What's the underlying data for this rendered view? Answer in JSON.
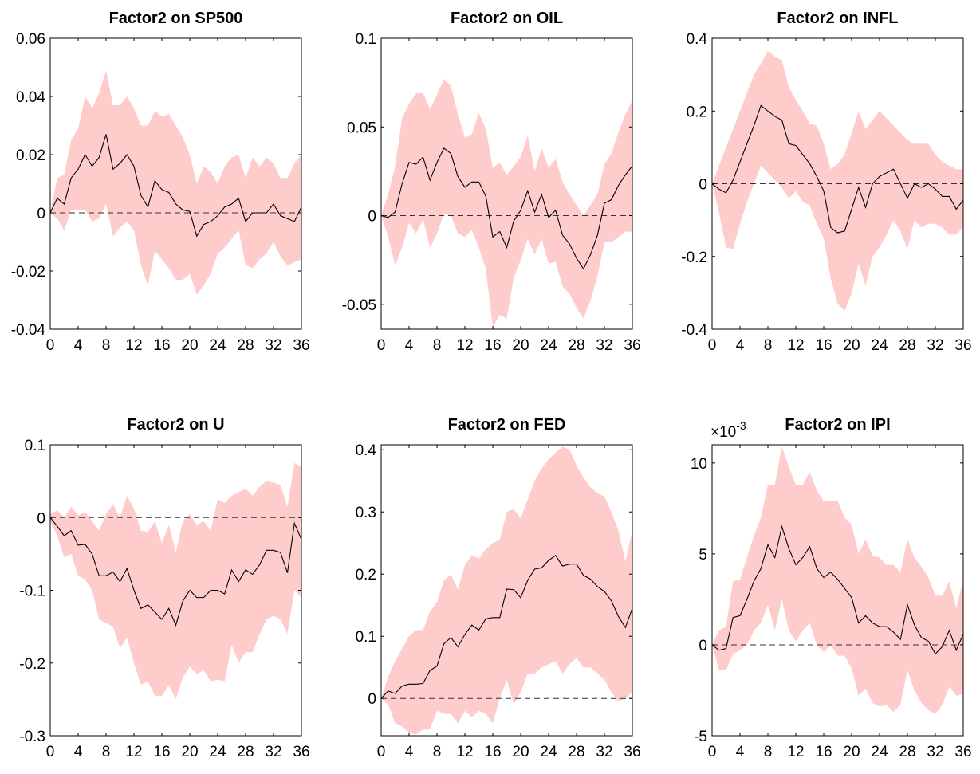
{
  "chart_data": [
    {
      "type": "line",
      "title": "Factor2 on SP500",
      "x": [
        0,
        1,
        2,
        3,
        4,
        5,
        6,
        7,
        8,
        9,
        10,
        11,
        12,
        13,
        14,
        15,
        16,
        17,
        18,
        19,
        20,
        21,
        22,
        23,
        24,
        25,
        26,
        27,
        28,
        29,
        30,
        31,
        32,
        33,
        34,
        35,
        36
      ],
      "xlim": [
        0,
        36
      ],
      "xticks": [
        0,
        4,
        8,
        12,
        16,
        20,
        24,
        28,
        32,
        36
      ],
      "ylim": [
        -0.04,
        0.06
      ],
      "yticks": [
        -0.04,
        -0.02,
        0,
        0.02,
        0.04,
        0.06
      ],
      "reference_line": 0,
      "band": {
        "color": "#ffcccc",
        "upper": [
          0,
          0.012,
          0.013,
          0.025,
          0.029,
          0.04,
          0.036,
          0.041,
          0.049,
          0.037,
          0.037,
          0.04,
          0.036,
          0.03,
          0.03,
          0.035,
          0.033,
          0.034,
          0.03,
          0.026,
          0.02,
          0.01,
          0.016,
          0.014,
          0.01,
          0.016,
          0.019,
          0.02,
          0.012,
          0.019,
          0.016,
          0.019,
          0.017,
          0.012,
          0.012,
          0.017,
          0.02
        ],
        "lower": [
          0,
          -0.002,
          -0.006,
          0.001,
          0.001,
          0.001,
          -0.003,
          -0.002,
          0.003,
          -0.008,
          -0.005,
          -0.003,
          -0.006,
          -0.018,
          -0.025,
          -0.013,
          -0.016,
          -0.019,
          -0.023,
          -0.023,
          -0.021,
          -0.028,
          -0.025,
          -0.021,
          -0.014,
          -0.012,
          -0.009,
          -0.006,
          -0.018,
          -0.019,
          -0.016,
          -0.014,
          -0.01,
          -0.015,
          -0.018,
          -0.017,
          -0.016
        ]
      },
      "series": [
        {
          "color": "#000000",
          "values": [
            0,
            0.005,
            0.003,
            0.012,
            0.015,
            0.02,
            0.016,
            0.019,
            0.027,
            0.015,
            0.017,
            0.02,
            0.016,
            0.006,
            0.002,
            0.011,
            0.008,
            0.007,
            0.003,
            0.001,
            0.0005,
            -0.008,
            -0.004,
            -0.003,
            -0.001,
            0.002,
            0.003,
            0.005,
            -0.003,
            0.0,
            0.0,
            0.0,
            0.003,
            -0.001,
            -0.002,
            -0.003,
            0.002
          ]
        }
      ]
    },
    {
      "type": "line",
      "title": "Factor2 on OIL",
      "x": [
        0,
        1,
        2,
        3,
        4,
        5,
        6,
        7,
        8,
        9,
        10,
        11,
        12,
        13,
        14,
        15,
        16,
        17,
        18,
        19,
        20,
        21,
        22,
        23,
        24,
        25,
        26,
        27,
        28,
        29,
        30,
        31,
        32,
        33,
        34,
        35,
        36
      ],
      "xlim": [
        0,
        36
      ],
      "xticks": [
        0,
        4,
        8,
        12,
        16,
        20,
        24,
        28,
        32,
        36
      ],
      "ylim": [
        -0.064,
        0.1
      ],
      "yticks": [
        -0.05,
        0,
        0.05,
        0.1
      ],
      "reference_line": 0,
      "band": {
        "color": "#ffcccc",
        "upper": [
          0,
          0.012,
          0.028,
          0.055,
          0.063,
          0.069,
          0.069,
          0.06,
          0.068,
          0.077,
          0.073,
          0.057,
          0.044,
          0.046,
          0.058,
          0.049,
          0.027,
          0.03,
          0.023,
          0.028,
          0.033,
          0.045,
          0.025,
          0.038,
          0.027,
          0.032,
          0.019,
          0.012,
          0.006,
          0.0,
          0.006,
          0.012,
          0.029,
          0.035,
          0.047,
          0.057,
          0.065
        ],
        "lower": [
          0,
          -0.012,
          -0.028,
          -0.018,
          -0.004,
          -0.01,
          -0.002,
          -0.018,
          -0.01,
          0.001,
          0.0,
          -0.01,
          -0.012,
          -0.008,
          -0.018,
          -0.03,
          -0.063,
          -0.056,
          -0.058,
          -0.035,
          -0.025,
          -0.013,
          -0.022,
          -0.013,
          -0.027,
          -0.026,
          -0.04,
          -0.044,
          -0.052,
          -0.058,
          -0.048,
          -0.034,
          -0.015,
          -0.015,
          -0.012,
          -0.009,
          -0.009
        ]
      },
      "series": [
        {
          "color": "#000000",
          "values": [
            0,
            -0.001,
            0.002,
            0.018,
            0.03,
            0.029,
            0.033,
            0.02,
            0.03,
            0.038,
            0.035,
            0.022,
            0.016,
            0.019,
            0.019,
            0.011,
            -0.012,
            -0.009,
            -0.018,
            -0.003,
            0.003,
            0.014,
            0.002,
            0.012,
            -0.001,
            0.003,
            -0.011,
            -0.016,
            -0.024,
            -0.03,
            -0.022,
            -0.011,
            0.007,
            0.009,
            0.017,
            0.023,
            0.028
          ]
        }
      ]
    },
    {
      "type": "line",
      "title": "Factor2 on INFL",
      "x": [
        0,
        1,
        2,
        3,
        4,
        5,
        6,
        7,
        8,
        9,
        10,
        11,
        12,
        13,
        14,
        15,
        16,
        17,
        18,
        19,
        20,
        21,
        22,
        23,
        24,
        25,
        26,
        27,
        28,
        29,
        30,
        31,
        32,
        33,
        34,
        35,
        36
      ],
      "xlim": [
        0,
        36
      ],
      "xticks": [
        0,
        4,
        8,
        12,
        16,
        20,
        24,
        28,
        32,
        36
      ],
      "ylim": [
        -0.4,
        0.4
      ],
      "yticks": [
        -0.4,
        -0.2,
        0,
        0.2,
        0.4
      ],
      "reference_line": 0,
      "band": {
        "color": "#ffcccc",
        "upper": [
          0,
          0.05,
          0.1,
          0.15,
          0.2,
          0.25,
          0.3,
          0.33,
          0.365,
          0.35,
          0.34,
          0.265,
          0.23,
          0.2,
          0.165,
          0.16,
          0.11,
          0.04,
          0.055,
          0.08,
          0.14,
          0.2,
          0.15,
          0.175,
          0.2,
          0.18,
          0.16,
          0.14,
          0.12,
          0.11,
          0.11,
          0.11,
          0.08,
          0.06,
          0.05,
          0.04,
          0.04
        ],
        "lower": [
          0,
          -0.08,
          -0.175,
          -0.18,
          -0.11,
          -0.05,
          0.0,
          0.05,
          0.03,
          0.01,
          -0.01,
          -0.04,
          -0.02,
          -0.05,
          -0.06,
          -0.11,
          -0.15,
          -0.26,
          -0.33,
          -0.35,
          -0.3,
          -0.22,
          -0.28,
          -0.2,
          -0.175,
          -0.14,
          -0.1,
          -0.13,
          -0.18,
          -0.1,
          -0.12,
          -0.11,
          -0.11,
          -0.12,
          -0.14,
          -0.14,
          -0.12
        ]
      },
      "series": [
        {
          "color": "#000000",
          "values": [
            0,
            -0.015,
            -0.025,
            0.01,
            0.06,
            0.11,
            0.16,
            0.215,
            0.2,
            0.185,
            0.175,
            0.11,
            0.105,
            0.08,
            0.055,
            0.02,
            -0.02,
            -0.12,
            -0.135,
            -0.13,
            -0.07,
            -0.01,
            -0.065,
            0.0,
            0.02,
            0.03,
            0.04,
            0.0,
            -0.04,
            0.0,
            -0.01,
            0.0,
            -0.015,
            -0.035,
            -0.035,
            -0.07,
            -0.045
          ]
        }
      ]
    },
    {
      "type": "line",
      "title": "Factor2 on U",
      "x": [
        0,
        1,
        2,
        3,
        4,
        5,
        6,
        7,
        8,
        9,
        10,
        11,
        12,
        13,
        14,
        15,
        16,
        17,
        18,
        19,
        20,
        21,
        22,
        23,
        24,
        25,
        26,
        27,
        28,
        29,
        30,
        31,
        32,
        33,
        34,
        35,
        36
      ],
      "xlim": [
        0,
        36
      ],
      "xticks": [
        0,
        4,
        8,
        12,
        16,
        20,
        24,
        28,
        32,
        36
      ],
      "ylim": [
        -0.3,
        0.1
      ],
      "yticks": [
        -0.3,
        -0.2,
        -0.1,
        0,
        0.1
      ],
      "reference_line": 0,
      "band": {
        "color": "#ffcccc",
        "upper": [
          0.005,
          0.01,
          0.0,
          0.015,
          0.003,
          0.008,
          -0.005,
          -0.018,
          0.005,
          0.018,
          0.0,
          0.03,
          0.012,
          -0.018,
          -0.02,
          -0.005,
          -0.035,
          -0.01,
          -0.048,
          -0.005,
          0.005,
          -0.01,
          -0.005,
          -0.018,
          0.025,
          0.02,
          0.03,
          0.035,
          0.04,
          0.03,
          0.042,
          0.05,
          0.048,
          0.045,
          0.015,
          0.075,
          0.07
        ],
        "lower": [
          -0.005,
          -0.025,
          -0.055,
          -0.05,
          -0.08,
          -0.085,
          -0.1,
          -0.14,
          -0.145,
          -0.15,
          -0.18,
          -0.165,
          -0.2,
          -0.23,
          -0.225,
          -0.245,
          -0.245,
          -0.23,
          -0.25,
          -0.22,
          -0.205,
          -0.215,
          -0.21,
          -0.225,
          -0.223,
          -0.225,
          -0.175,
          -0.2,
          -0.185,
          -0.185,
          -0.16,
          -0.14,
          -0.135,
          -0.14,
          -0.16,
          -0.1,
          -0.11
        ]
      },
      "series": [
        {
          "color": "#000000",
          "values": [
            0,
            -0.012,
            -0.025,
            -0.018,
            -0.038,
            -0.037,
            -0.05,
            -0.08,
            -0.08,
            -0.075,
            -0.088,
            -0.07,
            -0.1,
            -0.125,
            -0.12,
            -0.13,
            -0.14,
            -0.125,
            -0.148,
            -0.115,
            -0.1,
            -0.11,
            -0.11,
            -0.1,
            -0.1,
            -0.105,
            -0.072,
            -0.088,
            -0.072,
            -0.078,
            -0.065,
            -0.045,
            -0.045,
            -0.048,
            -0.076,
            -0.008,
            -0.03
          ]
        }
      ]
    },
    {
      "type": "line",
      "title": "Factor2 on FED",
      "x": [
        0,
        1,
        2,
        3,
        4,
        5,
        6,
        7,
        8,
        9,
        10,
        11,
        12,
        13,
        14,
        15,
        16,
        17,
        18,
        19,
        20,
        21,
        22,
        23,
        24,
        25,
        26,
        27,
        28,
        29,
        30,
        31,
        32,
        33,
        34,
        35,
        36
      ],
      "xlim": [
        0,
        36
      ],
      "xticks": [
        0,
        4,
        8,
        12,
        16,
        20,
        24,
        28,
        32,
        36
      ],
      "ylim": [
        -0.06,
        0.408
      ],
      "yticks": [
        0,
        0.1,
        0.2,
        0.3,
        0.4
      ],
      "reference_line": 0,
      "band": {
        "color": "#ffcccc",
        "upper": [
          0.0,
          0.035,
          0.06,
          0.08,
          0.1,
          0.11,
          0.11,
          0.14,
          0.155,
          0.19,
          0.2,
          0.175,
          0.215,
          0.23,
          0.225,
          0.24,
          0.25,
          0.255,
          0.3,
          0.305,
          0.29,
          0.32,
          0.35,
          0.37,
          0.385,
          0.395,
          0.405,
          0.4,
          0.375,
          0.355,
          0.34,
          0.33,
          0.325,
          0.3,
          0.27,
          0.22,
          0.27
        ],
        "lower": [
          0.0,
          -0.01,
          -0.04,
          -0.045,
          -0.055,
          -0.058,
          -0.05,
          -0.05,
          -0.02,
          -0.025,
          -0.025,
          -0.04,
          -0.02,
          -0.03,
          -0.02,
          -0.025,
          -0.04,
          0.0,
          0.03,
          -0.01,
          0.01,
          0.04,
          0.04,
          0.05,
          0.055,
          0.06,
          0.04,
          0.055,
          0.065,
          0.05,
          0.05,
          0.04,
          0.03,
          0.01,
          -0.005,
          0.0,
          0.01
        ]
      },
      "series": [
        {
          "color": "#000000",
          "values": [
            0,
            0.012,
            0.008,
            0.02,
            0.023,
            0.023,
            0.024,
            0.045,
            0.052,
            0.088,
            0.098,
            0.083,
            0.103,
            0.118,
            0.11,
            0.128,
            0.13,
            0.13,
            0.176,
            0.175,
            0.162,
            0.19,
            0.208,
            0.21,
            0.222,
            0.23,
            0.213,
            0.216,
            0.216,
            0.198,
            0.192,
            0.18,
            0.172,
            0.157,
            0.132,
            0.114,
            0.145
          ]
        }
      ]
    },
    {
      "type": "line",
      "title": "Factor2 on IPI",
      "y_multiplier": "×10",
      "y_exponent": "-3",
      "x": [
        0,
        1,
        2,
        3,
        4,
        5,
        6,
        7,
        8,
        9,
        10,
        11,
        12,
        13,
        14,
        15,
        16,
        17,
        18,
        19,
        20,
        21,
        22,
        23,
        24,
        25,
        26,
        27,
        28,
        29,
        30,
        31,
        32,
        33,
        34,
        35,
        36
      ],
      "xlim": [
        0,
        36
      ],
      "xticks": [
        0,
        4,
        8,
        12,
        16,
        20,
        24,
        28,
        32,
        36
      ],
      "ylim": [
        -5,
        11
      ],
      "yticks": [
        -5,
        0,
        5,
        10
      ],
      "reference_line": 0,
      "band": {
        "color": "#ffcccc",
        "upper": [
          0,
          0.8,
          1.0,
          3.5,
          3.6,
          4.8,
          6.0,
          7.0,
          8.8,
          8.8,
          10.9,
          9.8,
          8.8,
          8.8,
          9.5,
          8.5,
          7.9,
          7.9,
          7.9,
          7.0,
          6.6,
          5.0,
          5.8,
          4.9,
          4.8,
          4.4,
          4.4,
          4.0,
          5.8,
          4.8,
          4.3,
          3.7,
          2.7,
          2.7,
          3.5,
          2.0,
          3.6
        ],
        "lower": [
          0,
          -1.4,
          -1.4,
          -0.5,
          -0.3,
          0.0,
          0.8,
          1.2,
          2.2,
          0.8,
          2.5,
          0.8,
          0.2,
          0.8,
          1.2,
          0.0,
          -0.4,
          0.0,
          -0.6,
          -0.6,
          -1.3,
          -2.8,
          -2.4,
          -3.2,
          -3.4,
          -3.3,
          -3.7,
          -3.3,
          -1.4,
          -2.5,
          -3.2,
          -3.6,
          -3.8,
          -3.3,
          -2.3,
          -2.8,
          -2.7
        ]
      },
      "series": [
        {
          "color": "#000000",
          "values": [
            0,
            -0.3,
            -0.2,
            1.5,
            1.6,
            2.5,
            3.5,
            4.2,
            5.5,
            4.8,
            6.5,
            5.3,
            4.4,
            4.8,
            5.4,
            4.2,
            3.7,
            4.0,
            3.6,
            3.1,
            2.6,
            1.2,
            1.6,
            1.2,
            1.0,
            1.0,
            0.7,
            0.3,
            2.2,
            1.1,
            0.4,
            0.2,
            -0.5,
            -0.1,
            0.8,
            -0.3,
            0.6
          ]
        }
      ]
    }
  ]
}
